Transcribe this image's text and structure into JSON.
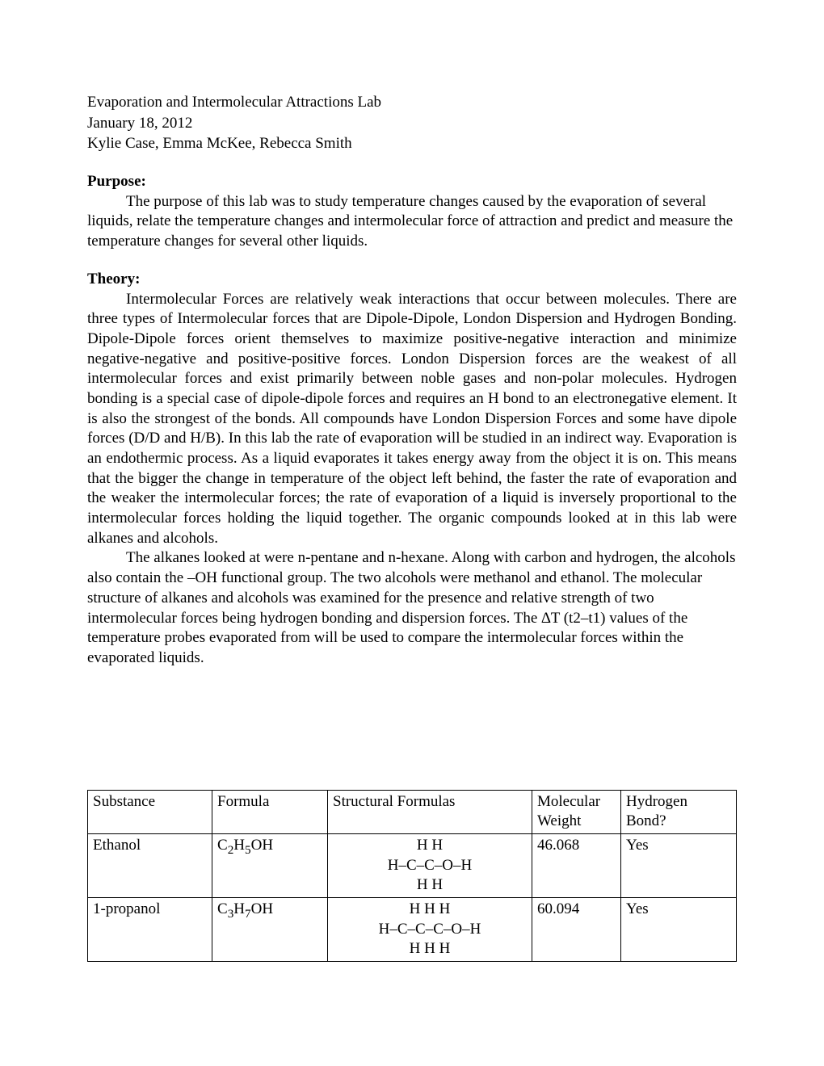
{
  "header": {
    "title": "Evaporation and Intermolecular Attractions Lab",
    "date": "January 18, 2012",
    "authors": "Kylie Case, Emma McKee, Rebecca Smith"
  },
  "purpose": {
    "heading": "Purpose:",
    "body": "The purpose of this lab was to study temperature changes caused by the evaporation of several liquids, relate the temperature changes and intermolecular force of attraction and predict and measure the temperature changes for several other liquids."
  },
  "theory": {
    "heading": "Theory:",
    "p1": "Intermolecular Forces are relatively weak interactions that occur between molecules. There are three types of Intermolecular forces that are Dipole-Dipole, London Dispersion and Hydrogen Bonding. Dipole-Dipole forces orient themselves to maximize positive-negative interaction and minimize negative-negative and positive-positive forces. London Dispersion forces are the weakest of all intermolecular forces and exist primarily between noble gases and non-polar molecules. Hydrogen bonding is a special case of dipole-dipole forces and requires an H bond to an electronegative element. It is also the strongest of the bonds.  All compounds have London Dispersion Forces and some have dipole forces (D/D and H/B). In this lab the rate of evaporation will be studied in an indirect way.  Evaporation is an endothermic process.  As a liquid evaporates it takes energy away from the object it is on.  This means that the bigger the change in temperature of the object left behind, the faster the rate of evaporation and the weaker the intermolecular forces; the rate of evaporation of a liquid is inversely proportional to the intermolecular forces holding the liquid together.  The organic compounds looked at in this lab were alkanes and alcohols.",
    "p2": "The alkanes looked at were n-pentane and n-hexane. Along with carbon and hydrogen, the alcohols also contain the –OH functional group.  The two alcohols were methanol and ethanol. The molecular structure of alkanes and alcohols was examined for the presence and relative strength of two intermolecular forces being hydrogen bonding and dispersion forces.  The ∆T  (t2–t1)  values of the temperature probes evaporated from will be used to compare the intermolecular forces within the evaporated liquids."
  },
  "table": {
    "columns": [
      "Substance",
      "Formula",
      "Structural Formulas",
      "Molecular Weight",
      "Hydrogen Bond?"
    ],
    "rows": [
      {
        "substance": "Ethanol",
        "formula_base": "C",
        "formula_sub1": "2",
        "formula_mid": "H",
        "formula_sub2": "5",
        "formula_end": "OH",
        "struct_top": "H H",
        "struct_mid": "H–C–C–O–H",
        "struct_bot": "H H",
        "weight": "46.068",
        "hbond": "Yes"
      },
      {
        "substance": "1-propanol",
        "formula_base": "C",
        "formula_sub1": "3",
        "formula_mid": "H",
        "formula_sub2": "7",
        "formula_end": "OH",
        "struct_top": "H H H",
        "struct_mid": "H–C–C–C–O–H",
        "struct_bot": "H H H",
        "weight": "60.094",
        "hbond": "Yes"
      }
    ]
  }
}
